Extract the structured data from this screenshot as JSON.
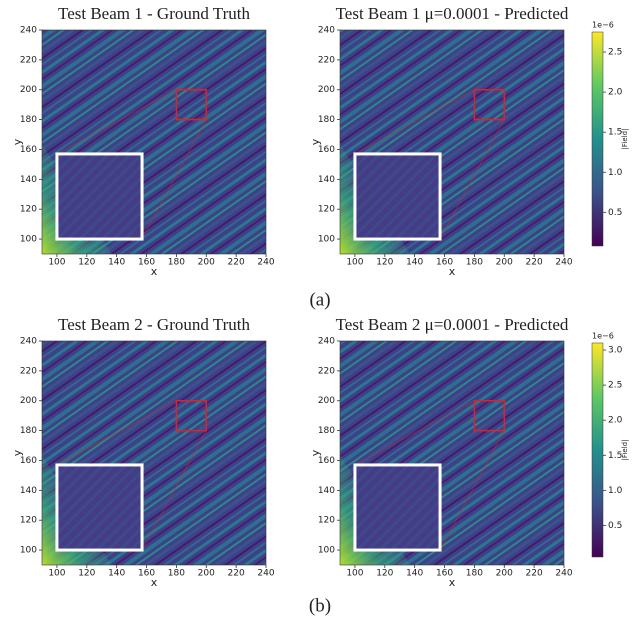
{
  "chart_data": [
    {
      "type": "heatmap",
      "title": "Test Beam 1 - Ground Truth",
      "xlabel": "x",
      "ylabel": "y",
      "xlim": [
        90,
        240
      ],
      "ylim": [
        90,
        240
      ],
      "xticks": [
        100,
        120,
        140,
        160,
        180,
        200,
        220,
        240
      ],
      "yticks": [
        100,
        120,
        140,
        160,
        180,
        200,
        220,
        240
      ],
      "zoom_box": {
        "x": [
          180,
          200
        ],
        "y": [
          180,
          200
        ]
      },
      "inset": {
        "x": [
          100,
          157
        ],
        "y": [
          100,
          157
        ]
      }
    },
    {
      "type": "heatmap",
      "title": "Test Beam 1 μ=0.0001 - Predicted",
      "xlabel": "x",
      "ylabel": "y",
      "xlim": [
        90,
        240
      ],
      "ylim": [
        90,
        240
      ],
      "xticks": [
        100,
        120,
        140,
        160,
        180,
        200,
        220,
        240
      ],
      "yticks": [
        100,
        120,
        140,
        160,
        180,
        200,
        220,
        240
      ],
      "zoom_box": {
        "x": [
          180,
          200
        ],
        "y": [
          180,
          200
        ]
      },
      "inset": {
        "x": [
          100,
          157
        ],
        "y": [
          100,
          157
        ]
      },
      "colorbar": {
        "label": "|Field|",
        "exponent": "1e−6",
        "clim": [
          0.08,
          2.75
        ],
        "ticks": [
          0.5,
          {
            "value": 1,
            "label": "1.0"
          },
          1.5,
          {
            "value": 2,
            "label": "2.0"
          },
          2.5
        ]
      }
    },
    {
      "type": "heatmap",
      "title": "Test Beam 2 - Ground Truth",
      "xlabel": "x",
      "ylabel": "y",
      "xlim": [
        90,
        240
      ],
      "ylim": [
        90,
        240
      ],
      "xticks": [
        100,
        120,
        140,
        160,
        180,
        200,
        220,
        240
      ],
      "yticks": [
        100,
        120,
        140,
        160,
        180,
        200,
        220,
        240
      ],
      "zoom_box": {
        "x": [
          180,
          200
        ],
        "y": [
          180,
          200
        ]
      },
      "inset": {
        "x": [
          100,
          157
        ],
        "y": [
          100,
          157
        ]
      }
    },
    {
      "type": "heatmap",
      "title": "Test Beam 2 μ=0.0001 - Predicted",
      "xlabel": "x",
      "ylabel": "y",
      "xlim": [
        90,
        240
      ],
      "ylim": [
        90,
        240
      ],
      "xticks": [
        100,
        120,
        140,
        160,
        180,
        200,
        220,
        240
      ],
      "yticks": [
        100,
        120,
        140,
        160,
        180,
        200,
        220,
        240
      ],
      "zoom_box": {
        "x": [
          180,
          200
        ],
        "y": [
          180,
          200
        ]
      },
      "inset": {
        "x": [
          100,
          157
        ],
        "y": [
          100,
          157
        ]
      },
      "colorbar": {
        "label": "|Field|",
        "exponent": "1e−6",
        "clim": [
          0.05,
          3.1
        ],
        "ticks": [
          0.5,
          {
            "value": 1,
            "label": "1.0"
          },
          1.5,
          {
            "value": 2,
            "label": "2.0"
          },
          2.5,
          {
            "value": 3,
            "label": "3.0"
          }
        ]
      }
    }
  ],
  "captions": [
    "(a)",
    "(b)"
  ]
}
